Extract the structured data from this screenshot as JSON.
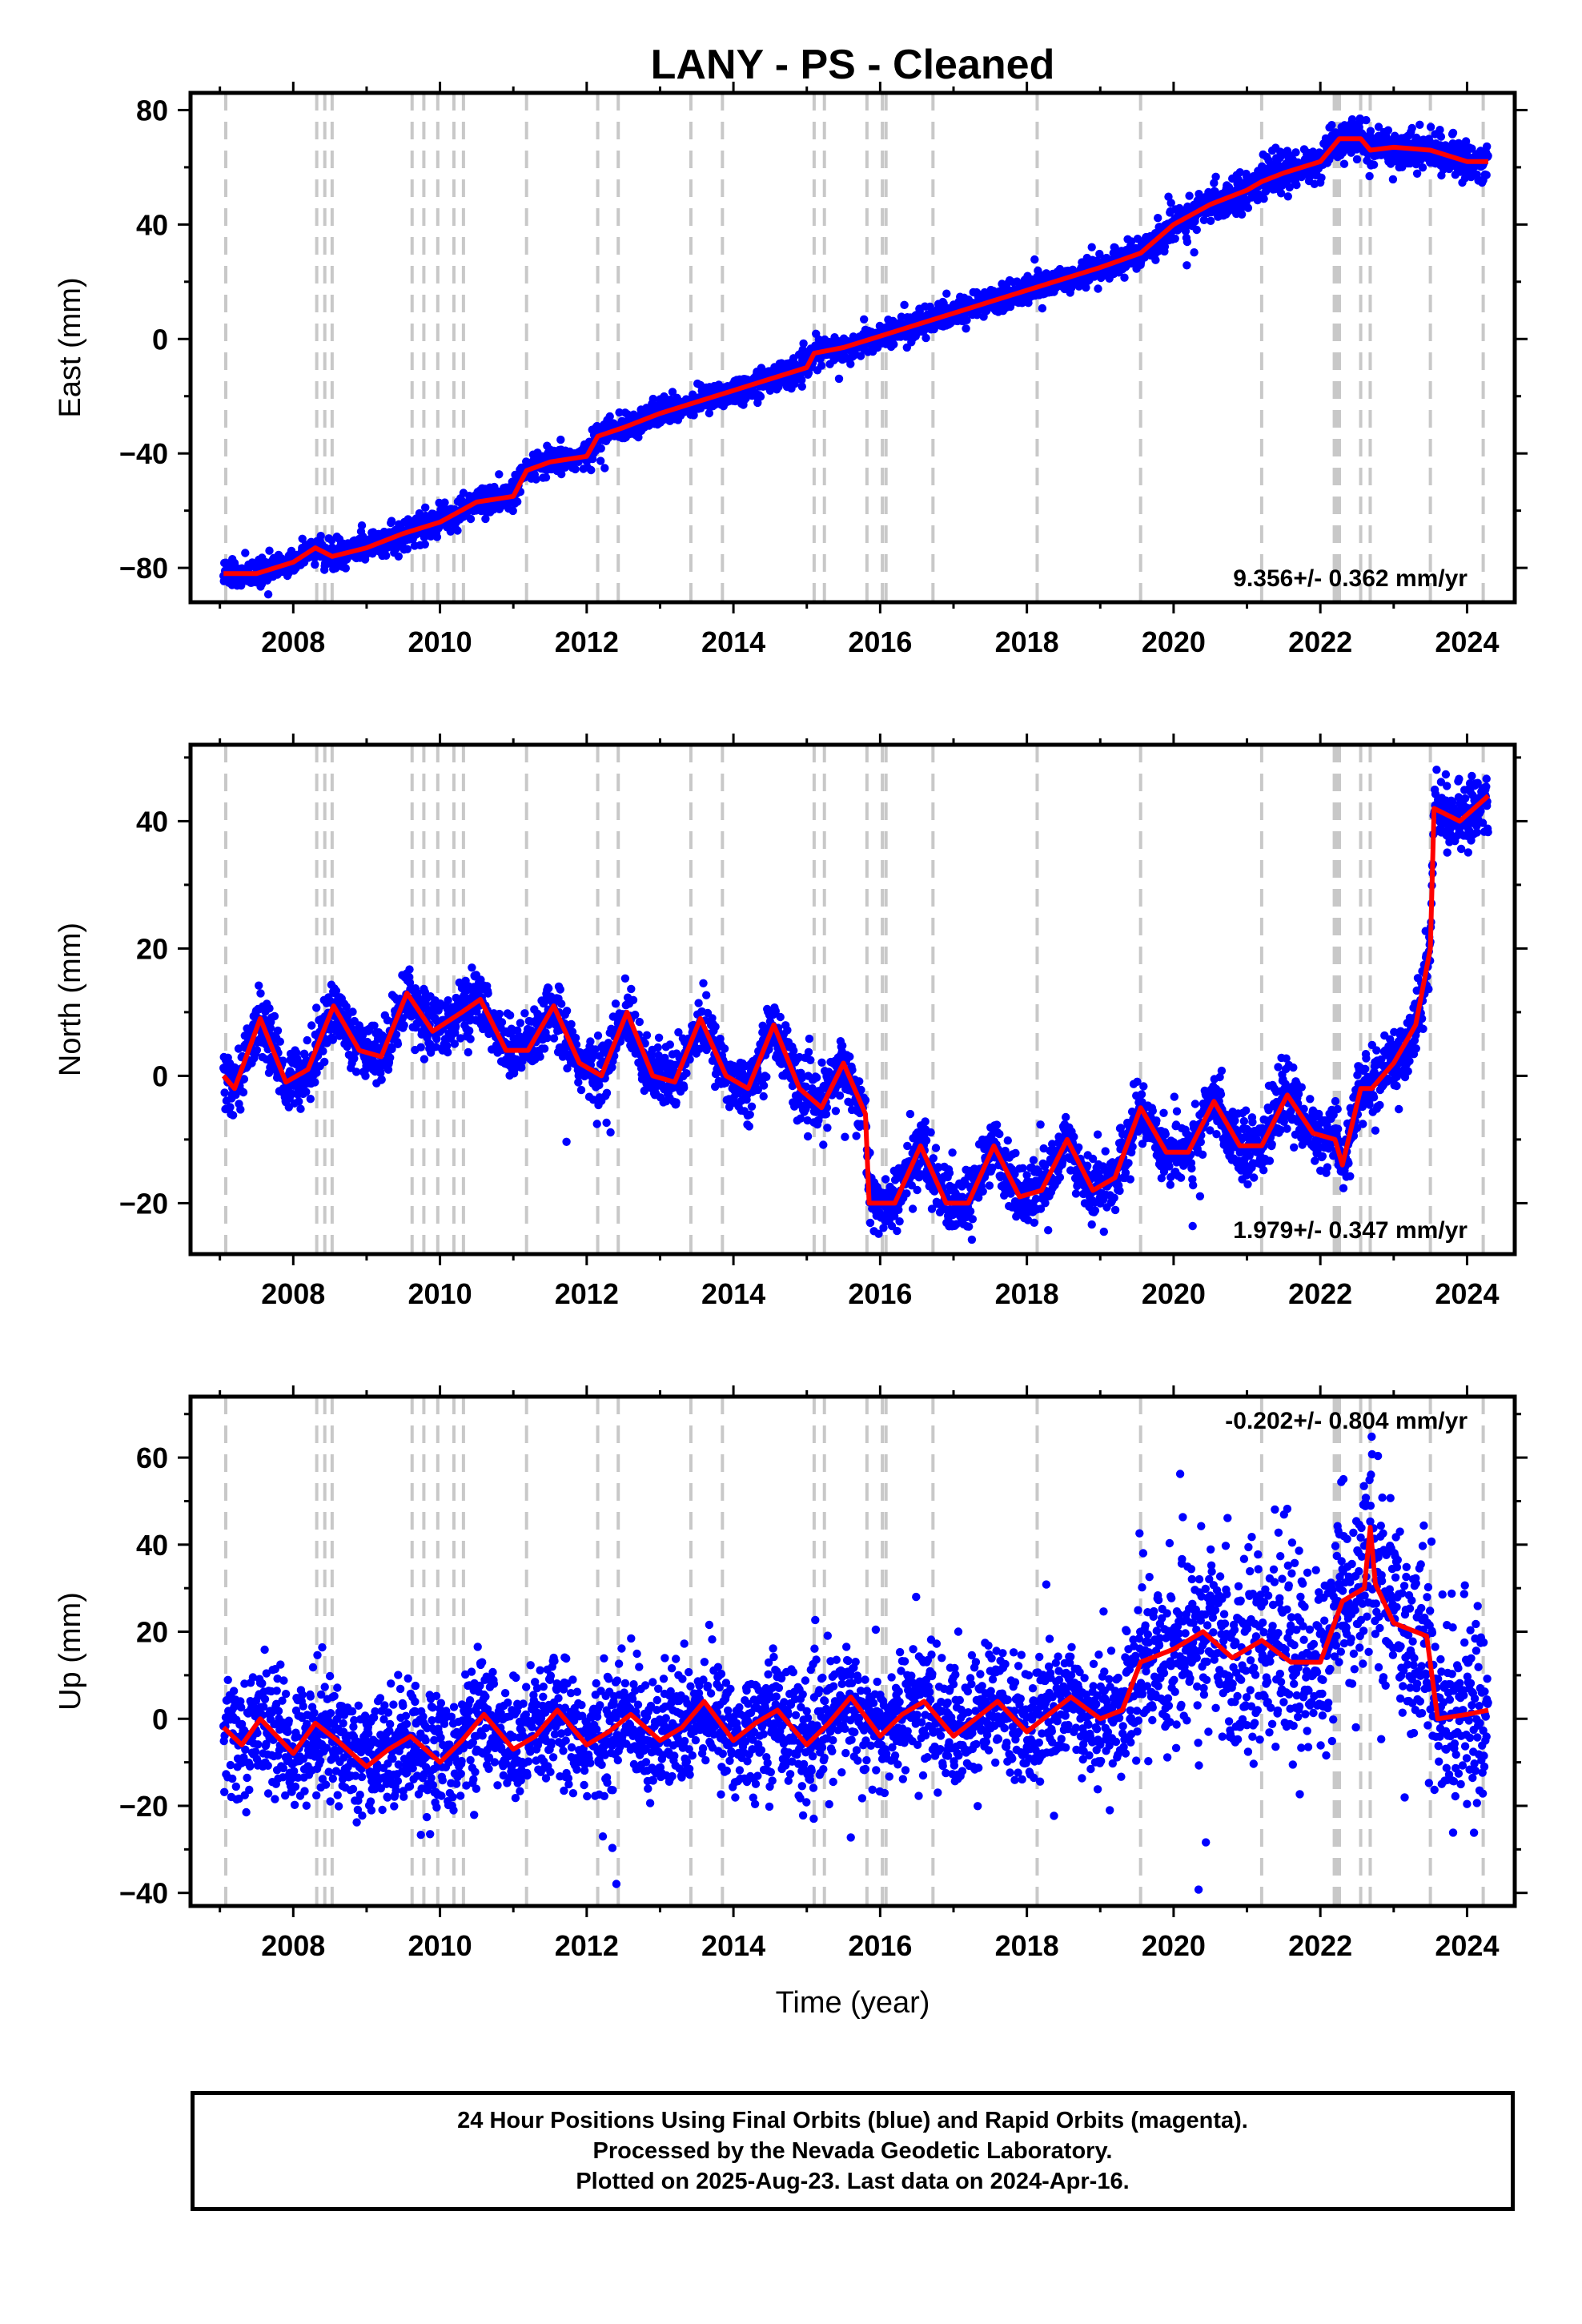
{
  "colors": {
    "final_orbits": "#0000ff",
    "model": "#ff0000",
    "event_lines": "#c8c8c8",
    "frame": "#000000"
  },
  "footer": {
    "line1": "24 Hour Positions Using Final Orbits (blue) and Rapid Orbits (magenta).",
    "line2": "Processed by the Nevada Geodetic Laboratory.",
    "line3": "Plotted on 2025-Aug-23. Last data on 2024-Apr-16."
  },
  "chart_data": {
    "type": "scatter",
    "title": "LANY  - PS - Cleaned",
    "xlabel": "Time (year)",
    "x_ticks": [
      2008,
      2010,
      2012,
      2014,
      2016,
      2018,
      2020,
      2022,
      2024
    ],
    "x_range": [
      2006.6,
      2024.65
    ],
    "data_range": [
      2007.05,
      2024.29
    ],
    "event_lines": [
      2007.08,
      2008.32,
      2008.43,
      2008.53,
      2009.62,
      2009.78,
      2009.97,
      2010.19,
      2010.32,
      2011.18,
      2012.15,
      2012.43,
      2013.42,
      2013.85,
      2015.1,
      2015.24,
      2015.82,
      2016.03,
      2016.08,
      2016.72,
      2018.14,
      2019.55,
      2021.2,
      2022.19,
      2022.23,
      2022.26,
      2022.55,
      2022.68,
      2023.5,
      2024.22
    ],
    "panels": [
      {
        "name": "East",
        "ylabel": "East (mm)",
        "ylim": [
          -92,
          86
        ],
        "y_ticks": [
          -80,
          -40,
          0,
          40,
          80
        ],
        "rate": "9.356+/- 0.362 mm/yr",
        "rate_corner": "bottom-right",
        "model": {
          "x": [
            2007.05,
            2007.5,
            2008.0,
            2008.3,
            2008.53,
            2009.0,
            2009.5,
            2010.0,
            2010.5,
            2011.0,
            2011.18,
            2011.5,
            2012.0,
            2012.15,
            2012.5,
            2013.0,
            2013.5,
            2014.0,
            2014.5,
            2015.0,
            2015.1,
            2015.5,
            2016.0,
            2016.5,
            2017.0,
            2017.5,
            2018.0,
            2018.5,
            2019.0,
            2019.55,
            2020.0,
            2020.5,
            2021.0,
            2021.2,
            2021.5,
            2022.0,
            2022.26,
            2022.55,
            2022.68,
            2023.0,
            2023.5,
            2024.0,
            2024.29
          ],
          "y": [
            -82,
            -82,
            -78,
            -73,
            -76,
            -73,
            -68,
            -64,
            -57,
            -55,
            -46,
            -43,
            -41,
            -34,
            -31,
            -26,
            -22,
            -18,
            -14,
            -10,
            -5,
            -3,
            1,
            5,
            9,
            13,
            17,
            21,
            25,
            30,
            40,
            47,
            52,
            55,
            58,
            62,
            70,
            70,
            66,
            67,
            66,
            62,
            62
          ]
        }
      },
      {
        "name": "North",
        "ylabel": "North (mm)",
        "ylim": [
          -28,
          52
        ],
        "y_ticks": [
          -20,
          0,
          20,
          40
        ],
        "rate": "1.979+/- 0.347 mm/yr",
        "rate_corner": "bottom-right",
        "model": {
          "x": [
            2007.05,
            2007.2,
            2007.55,
            2007.9,
            2008.2,
            2008.55,
            2008.9,
            2009.2,
            2009.55,
            2009.9,
            2010.3,
            2010.55,
            2010.9,
            2011.2,
            2011.55,
            2011.9,
            2012.2,
            2012.55,
            2012.9,
            2013.2,
            2013.55,
            2013.9,
            2014.2,
            2014.55,
            2014.9,
            2015.2,
            2015.5,
            2015.8,
            2015.85,
            2016.2,
            2016.55,
            2016.9,
            2017.2,
            2017.55,
            2017.9,
            2018.2,
            2018.55,
            2018.9,
            2019.2,
            2019.55,
            2019.9,
            2020.2,
            2020.55,
            2020.9,
            2021.2,
            2021.55,
            2021.9,
            2022.2,
            2022.3,
            2022.55,
            2022.7,
            2023.0,
            2023.3,
            2023.5,
            2023.55,
            2023.9,
            2024.29
          ],
          "y": [
            0,
            -2,
            9,
            -1,
            1,
            11,
            4,
            3,
            13,
            7,
            10,
            12,
            4,
            4,
            11,
            2,
            0,
            10,
            0,
            -1,
            9,
            0,
            -2,
            8,
            -2,
            -5,
            2,
            -6,
            -20,
            -20,
            -11,
            -20,
            -20,
            -11,
            -19,
            -18,
            -10,
            -18,
            -16,
            -5,
            -12,
            -12,
            -4,
            -11,
            -11,
            -3,
            -9,
            -10,
            -14,
            -2,
            -2,
            2,
            8,
            20,
            42,
            40,
            44
          ]
        }
      },
      {
        "name": "Up",
        "ylabel": "Up (mm)",
        "ylim": [
          -43,
          74
        ],
        "y_ticks": [
          -40,
          -20,
          0,
          20,
          40,
          60
        ],
        "rate": "-0.202+/- 0.804 mm/yr",
        "rate_corner": "top-right",
        "model": {
          "x": [
            2007.05,
            2007.3,
            2007.55,
            2008.0,
            2008.3,
            2008.6,
            2009.0,
            2009.3,
            2009.6,
            2010.0,
            2010.3,
            2010.6,
            2011.0,
            2011.3,
            2011.6,
            2012.0,
            2012.3,
            2012.6,
            2013.0,
            2013.3,
            2013.6,
            2014.0,
            2014.3,
            2014.6,
            2015.0,
            2015.3,
            2015.6,
            2016.0,
            2016.3,
            2016.6,
            2017.0,
            2017.3,
            2017.6,
            2018.0,
            2018.3,
            2018.6,
            2019.0,
            2019.3,
            2019.55,
            2020.0,
            2020.4,
            2020.8,
            2021.2,
            2021.6,
            2022.0,
            2022.3,
            2022.6,
            2022.68,
            2022.75,
            2023.0,
            2023.45,
            2023.6,
            2024.0,
            2024.29
          ],
          "y": [
            -2,
            -6,
            0,
            -8,
            -1,
            -5,
            -11,
            -7,
            -4,
            -10,
            -5,
            1,
            -7,
            -4,
            2,
            -6,
            -3,
            1,
            -5,
            -2,
            4,
            -5,
            -1,
            2,
            -6,
            -1,
            5,
            -4,
            1,
            4,
            -4,
            0,
            4,
            -3,
            1,
            5,
            0,
            2,
            13,
            16,
            20,
            14,
            18,
            13,
            13,
            27,
            30,
            44,
            31,
            22,
            19,
            0,
            1,
            2
          ]
        }
      }
    ]
  }
}
